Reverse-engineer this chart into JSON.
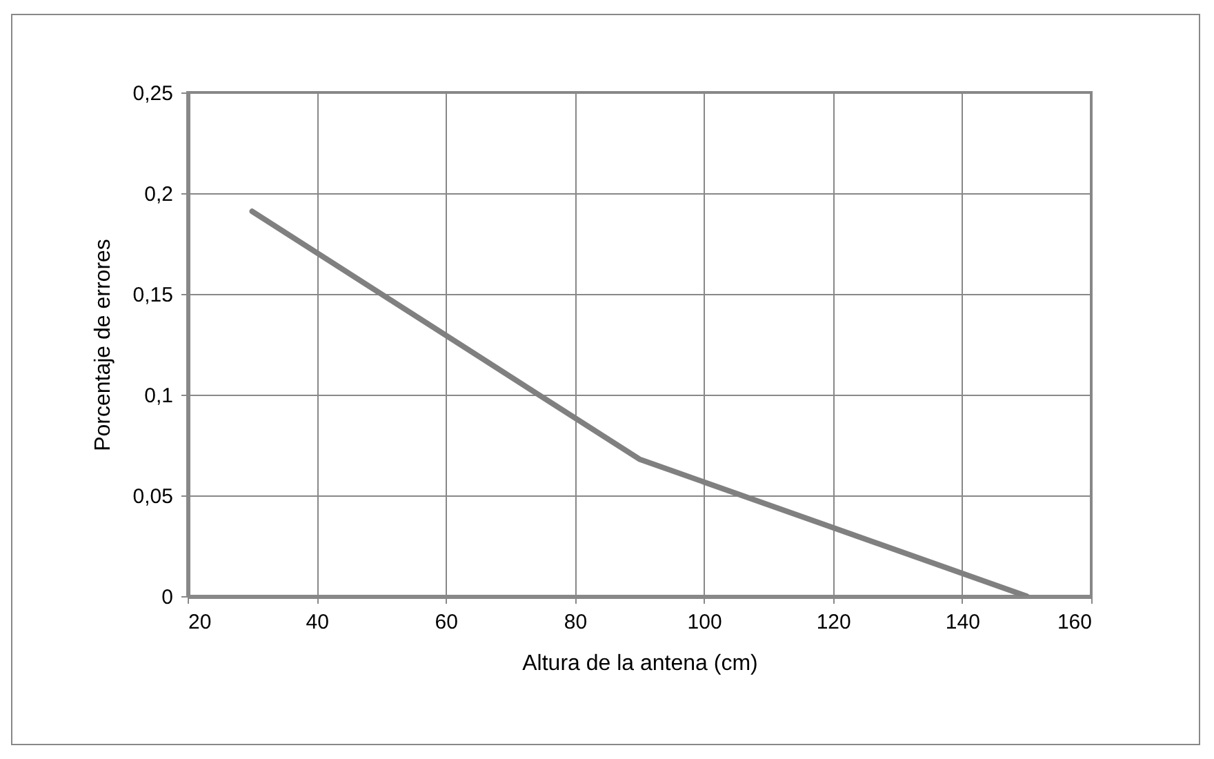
{
  "chart_data": {
    "type": "line",
    "xlabel": "Altura de la antena (cm)",
    "ylabel": "Porcentaje de errores",
    "x": [
      30,
      90,
      150
    ],
    "series": [
      {
        "color": "#808080",
        "values": [
          0.191,
          0.068,
          0
        ]
      }
    ],
    "xlim": [
      20,
      160
    ],
    "xticks": [
      20,
      40,
      60,
      80,
      100,
      120,
      140,
      160
    ],
    "ylim": [
      0,
      0.25
    ],
    "yticks": [
      {
        "value": 0,
        "label": "0"
      },
      {
        "value": 0.05,
        "label": "0,05"
      },
      {
        "value": 0.1,
        "label": "0,1"
      },
      {
        "value": 0.15,
        "label": "0,15"
      },
      {
        "value": 0.2,
        "label": "0,2"
      },
      {
        "value": 0.25,
        "label": "0,25"
      }
    ],
    "grid": true,
    "marker": "none",
    "line_style": "solid"
  }
}
